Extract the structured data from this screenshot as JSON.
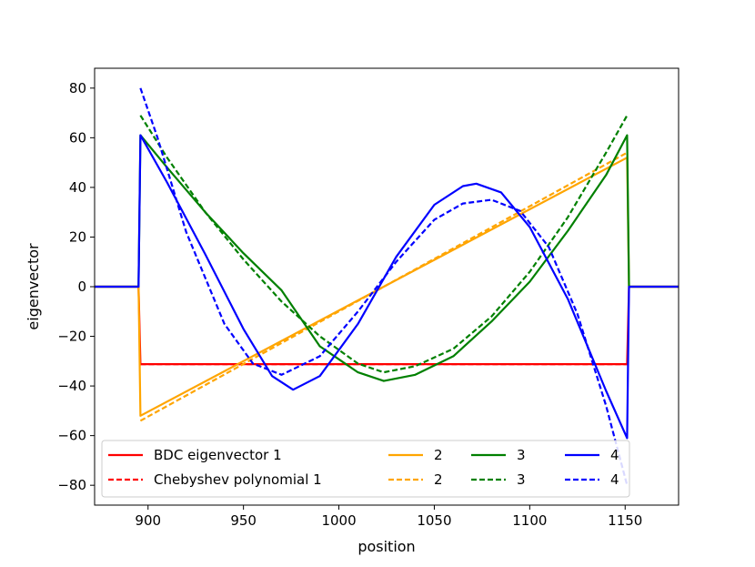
{
  "chart_data": {
    "type": "line",
    "title": "",
    "xlabel": "position",
    "ylabel": "eigenvector",
    "xlim": [
      872,
      1178
    ],
    "ylim": [
      -88,
      88
    ],
    "xticks": [
      900,
      950,
      1000,
      1050,
      1100,
      1150
    ],
    "yticks": [
      -80,
      -60,
      -40,
      -20,
      0,
      20,
      40,
      60,
      80
    ],
    "xtick_labels": [
      "900",
      "950",
      "1000",
      "1050",
      "1100",
      "1150"
    ],
    "ytick_labels": [
      "−80",
      "−60",
      "−40",
      "−20",
      "0",
      "20",
      "40",
      "60",
      "80"
    ],
    "grid": false,
    "legend": {
      "placement": "lower-left",
      "columns": 4,
      "entries": [
        {
          "label": "BDC eigenvector 1",
          "color": "#ff0000",
          "style": "solid"
        },
        {
          "label": "Chebyshev polynomial 1",
          "color": "#ff0000",
          "style": "dashed"
        },
        {
          "label": "2",
          "color": "#ffa500",
          "style": "solid"
        },
        {
          "label": "2",
          "color": "#ffa500",
          "style": "dashed"
        },
        {
          "label": "3",
          "color": "#008000",
          "style": "solid"
        },
        {
          "label": "3",
          "color": "#008000",
          "style": "dashed"
        },
        {
          "label": "4",
          "color": "#0000ff",
          "style": "solid"
        },
        {
          "label": "4",
          "color": "#0000ff",
          "style": "dashed"
        }
      ]
    },
    "series": [
      {
        "color": "#ff0000",
        "style": "solid",
        "x": [
          872,
          895,
          896,
          1151,
          1152,
          1178
        ],
        "y": [
          0,
          0,
          -31.2,
          -31.2,
          0,
          0
        ]
      },
      {
        "color": "#ff0000",
        "style": "dashed",
        "x": [
          896,
          1151
        ],
        "y": [
          -31.2,
          -31.2
        ]
      },
      {
        "color": "#ffa500",
        "style": "solid",
        "x": [
          872,
          895,
          896,
          1151,
          1152,
          1178
        ],
        "y": [
          0,
          0,
          -52,
          52,
          0,
          0
        ]
      },
      {
        "color": "#ffa500",
        "style": "dashed",
        "x": [
          896,
          1151
        ],
        "y": [
          -54,
          54
        ]
      },
      {
        "color": "#008000",
        "style": "solid",
        "x": [
          872,
          895,
          896,
          910,
          930,
          950,
          970,
          990,
          1010,
          1023.5,
          1040,
          1060,
          1080,
          1100,
          1120,
          1140,
          1151,
          1152,
          1178
        ],
        "y": [
          0,
          0,
          61,
          48,
          30,
          13.5,
          -1.5,
          -24,
          -34.5,
          -38,
          -35.5,
          -28,
          -14,
          2,
          22.5,
          45,
          61,
          0,
          0
        ]
      },
      {
        "color": "#008000",
        "style": "dashed",
        "x": [
          896,
          910,
          930,
          950,
          970,
          990,
          1010,
          1023.5,
          1040,
          1060,
          1080,
          1100,
          1120,
          1140,
          1151
        ],
        "y": [
          69,
          52,
          30,
          11,
          -6,
          -20,
          -31,
          -34.5,
          -32,
          -25,
          -12,
          6,
          28,
          54,
          69
        ]
      },
      {
        "color": "#0000ff",
        "style": "solid",
        "x": [
          872,
          895,
          896,
          910,
          930,
          950,
          965,
          976,
          990,
          1010,
          1030,
          1050,
          1065,
          1072,
          1085,
          1100,
          1120,
          1140,
          1151,
          1152,
          1178
        ],
        "y": [
          0,
          0,
          61,
          42,
          13,
          -17,
          -36,
          -41.5,
          -36,
          -15,
          12,
          33,
          40.5,
          41.5,
          38,
          24,
          -5,
          -42,
          -61,
          0,
          0
        ]
      },
      {
        "color": "#0000ff",
        "style": "dashed",
        "x": [
          896,
          905,
          920,
          940,
          955,
          970,
          990,
          1010,
          1030,
          1050,
          1065,
          1080,
          1095,
          1110,
          1125,
          1140,
          1151
        ],
        "y": [
          80,
          60,
          22,
          -15,
          -31,
          -35.5,
          -28,
          -10,
          10,
          27,
          33.5,
          35,
          30.5,
          16,
          -11,
          -48,
          -80
        ]
      }
    ]
  }
}
